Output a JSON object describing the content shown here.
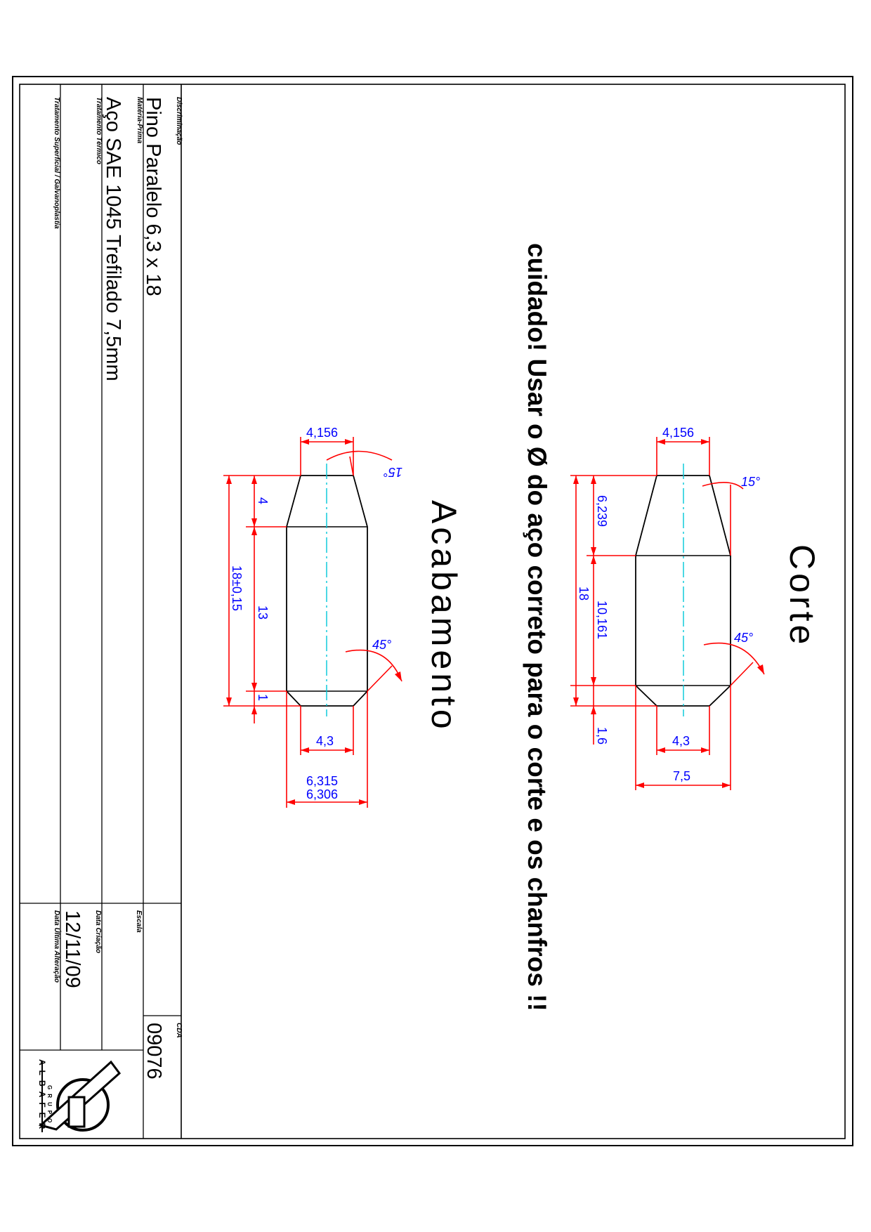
{
  "title_block": {
    "descr_label": "Discriminação",
    "descr_value": "Pino Paralelo 6,3 x 18",
    "materia_label": "Matéria-Prima",
    "materia_value": "Aço SAE 1045 Trefilado 7,5mm",
    "tt_label": "Tratamento Térmico",
    "ts_label": "Tratamento Superficial / Galvanoplastia",
    "escala_label": "Escala",
    "data_criacao_label": "Data Criação",
    "data_criacao_value": "12/11/09",
    "data_alt_label": "Data Última Alteração",
    "cda_label": "CDA",
    "cda_value": "09076",
    "logo_text": "ALBAFER",
    "logo_small": "GRUPO"
  },
  "warning": "cuidado! Usar o Ø do aço correto para o corte e os chanfros !!",
  "views": {
    "corte": {
      "title": "Corte",
      "dims": {
        "top_dia": "4,156",
        "top_angle": "15°",
        "taper_len": "6,239",
        "body_len": "10,161",
        "total_len": "18",
        "bottom_angle": "45°",
        "chamfer_len": "1,6",
        "bottom_dia": "4,3",
        "outer_dia": "7,5"
      }
    },
    "acabamento": {
      "title": "Acabamento",
      "dims": {
        "top_dia": "4,156",
        "top_angle": "15°",
        "taper_len": "4",
        "body_len": "13",
        "total_len": "18±0,15",
        "bottom_angle": "45°",
        "chamfer_len": "1",
        "bottom_dia": "4,3",
        "outer_dia_max": "6,315",
        "outer_dia_min": "6,306"
      }
    }
  },
  "colors": {
    "outline": "#000000",
    "dimension": "#ff0000",
    "dimension_text": "#0000ff",
    "centerline": "#00c8d8"
  }
}
